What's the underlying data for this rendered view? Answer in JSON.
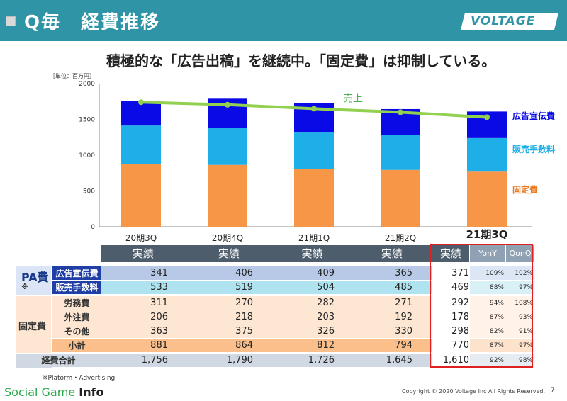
{
  "header": {
    "title": "Q毎　経費推移",
    "logo": "VOLTAGE"
  },
  "subtitle": "積極的な「広告出稿」を継続中。「固定費」は抑制している。",
  "unit": "［単位：百万円］",
  "chart_data": {
    "type": "bar",
    "stacked": true,
    "categories": [
      "20期3Q",
      "20期4Q",
      "21期1Q",
      "21期2Q",
      "21期3Q"
    ],
    "series": [
      {
        "name": "固定費",
        "values": [
          881,
          864,
          812,
          794,
          770
        ],
        "color": "#f79646"
      },
      {
        "name": "販売手数料",
        "values": [
          533,
          519,
          504,
          485,
          469
        ],
        "color": "#1eaee8"
      },
      {
        "name": "広告宣伝費",
        "values": [
          341,
          406,
          409,
          365,
          371
        ],
        "color": "#0a0ae6"
      }
    ],
    "line": {
      "name": "売上",
      "values": [
        1740,
        1705,
        1650,
        1600,
        1530
      ],
      "color": "#92d050"
    },
    "ylim": [
      0,
      2000
    ],
    "yticks": [
      "0",
      "500",
      "1000",
      "1500",
      "2000"
    ],
    "legend": "right"
  },
  "table": {
    "header": [
      "実績",
      "実績",
      "実績",
      "実績",
      "実績",
      "YonY",
      "QonQ"
    ],
    "pa_label": "PA費",
    "pa_note": "※",
    "fixed_label": "固定費",
    "rows": [
      {
        "label": "広告宣伝費",
        "values": [
          "341",
          "406",
          "409",
          "365",
          "371"
        ],
        "yony": "109%",
        "qonq": "102%"
      },
      {
        "label": "販売手数料",
        "values": [
          "533",
          "519",
          "504",
          "485",
          "469"
        ],
        "yony": "88%",
        "qonq": "97%"
      },
      {
        "label": "労務費",
        "values": [
          "311",
          "270",
          "282",
          "271",
          "292"
        ],
        "yony": "94%",
        "qonq": "108%"
      },
      {
        "label": "外注費",
        "values": [
          "206",
          "218",
          "203",
          "192",
          "178"
        ],
        "yony": "87%",
        "qonq": "93%"
      },
      {
        "label": "その他",
        "values": [
          "363",
          "375",
          "326",
          "330",
          "298"
        ],
        "yony": "82%",
        "qonq": "91%"
      },
      {
        "label": "小計",
        "values": [
          "881",
          "864",
          "812",
          "794",
          "770"
        ],
        "yony": "87%",
        "qonq": "97%"
      },
      {
        "label": "経費合計",
        "values": [
          "1,756",
          "1,790",
          "1,726",
          "1,645",
          "1,610"
        ],
        "yony": "92%",
        "qonq": "98%"
      }
    ]
  },
  "note": "※Platorm・Advertising",
  "brand": {
    "part1": "Social Game ",
    "part2": "Info"
  },
  "copyright": "Copyright © 2020 Voltage Inc  All Rights Reserved.",
  "page": "7"
}
